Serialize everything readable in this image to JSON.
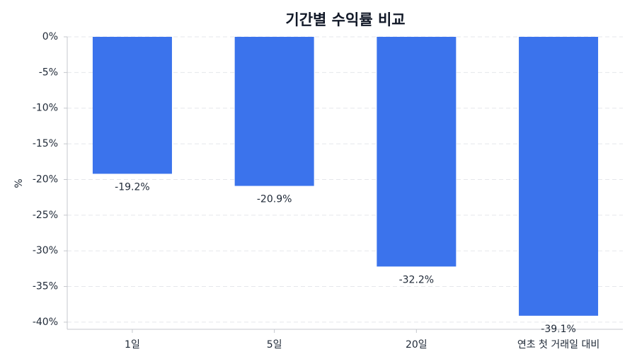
{
  "chart_data": {
    "type": "bar",
    "title": "기간별 수익률 비교",
    "y_label": "%",
    "categories": [
      "1일",
      "5일",
      "20일",
      "연초 첫 거래일 대비"
    ],
    "values": [
      -19.2,
      -20.9,
      -32.2,
      -39.1
    ],
    "value_labels": [
      "-19.2%",
      "-20.9%",
      "-32.2%",
      "-39.1%"
    ],
    "color": "#3b73ec",
    "ylim": [
      -41,
      0
    ],
    "yticks": [
      {
        "value": 0,
        "label": "0%"
      },
      {
        "value": -5,
        "label": "-5%"
      },
      {
        "value": -10,
        "label": "-10%"
      },
      {
        "value": -15,
        "label": "-15%"
      },
      {
        "value": -20,
        "label": "-20%"
      },
      {
        "value": -25,
        "label": "-25%"
      },
      {
        "value": -30,
        "label": "-30%"
      },
      {
        "value": -35,
        "label": "-35%"
      },
      {
        "value": -40,
        "label": "-40%"
      }
    ],
    "grid": true
  }
}
